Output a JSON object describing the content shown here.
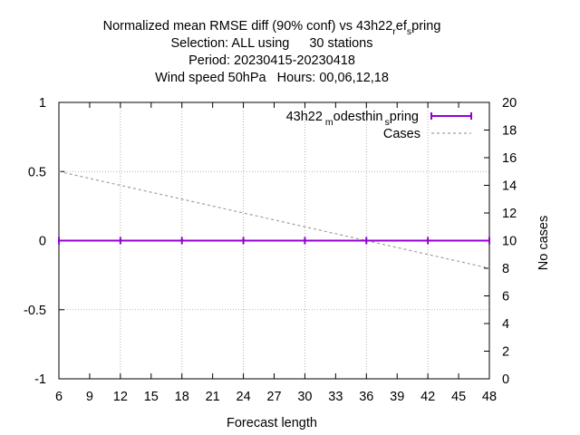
{
  "chart_data": {
    "type": "line",
    "title_lines": [
      "Normalized mean RMSE diff (90% conf) vs 43h22_ref_spring",
      "Selection: ALL using    30 stations",
      "Period: 20230415-20230418",
      "Wind speed 50hPa   Hours:  00,06,12,18"
    ],
    "title_sub": {
      "prefix": "Normalized mean RMSE diff (90% conf) vs 43h22",
      "sub1": "r",
      "mid": "ef",
      "sub2": "s",
      "suffix": "pring"
    },
    "selection": {
      "label": "Selection: ALL using",
      "value": "30 stations"
    },
    "period": "Period: 20230415-20230418",
    "variable": {
      "label": "Wind speed 50hPa",
      "hours": "Hours:  00,06,12,18"
    },
    "xlabel": "Forecast length",
    "ylabel": "",
    "y2label": "No cases",
    "xlim": [
      6,
      48
    ],
    "ylim": [
      -1,
      1
    ],
    "y2lim": [
      0,
      20
    ],
    "xticks": [
      6,
      9,
      12,
      15,
      18,
      21,
      24,
      27,
      30,
      33,
      36,
      39,
      42,
      45,
      48
    ],
    "yticks": [
      -1,
      -0.5,
      0,
      0.5,
      1
    ],
    "y2ticks": [
      0,
      2,
      4,
      6,
      8,
      10,
      12,
      14,
      16,
      18,
      20
    ],
    "grid": true,
    "legend_position": "top-right",
    "series": [
      {
        "name": "43h22_modesthin_spring",
        "name_parts": {
          "prefix": "43h22",
          "sub1": "m",
          "mid": "odesthin",
          "sub2": "s",
          "suffix": "pring"
        },
        "axis": "y",
        "color": "#9400d3",
        "style": "solid-errorbars",
        "x": [
          6,
          12,
          18,
          24,
          30,
          36,
          42,
          48
        ],
        "y": [
          0,
          0,
          0,
          0,
          0,
          0,
          0,
          0
        ],
        "err": [
          0,
          0,
          0,
          0,
          0,
          0,
          0,
          0
        ]
      },
      {
        "name": "Cases",
        "axis": "y2",
        "color": "#a0a0a0",
        "style": "dashed",
        "x": [
          6,
          12,
          18,
          24,
          30,
          36,
          42,
          48
        ],
        "y": [
          15,
          14,
          13,
          12,
          11,
          10,
          9,
          8
        ]
      }
    ]
  }
}
